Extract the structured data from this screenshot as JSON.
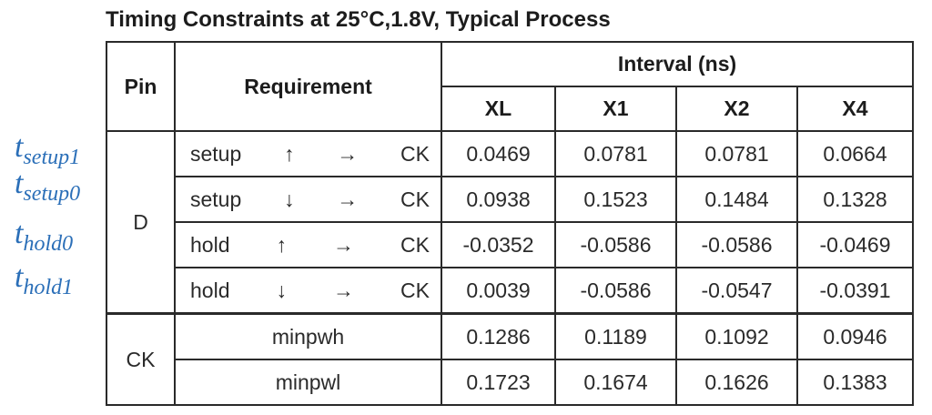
{
  "title": "Timing Constraints at 25°C,1.8V, Typical Process",
  "annotations": [
    {
      "base": "t",
      "sub": "setup1"
    },
    {
      "base": "t",
      "sub": "setup0"
    },
    {
      "base": "t",
      "sub": "hold0"
    },
    {
      "base": "t",
      "sub": "hold1"
    }
  ],
  "table": {
    "header": {
      "pin": "Pin",
      "requirement": "Requirement",
      "interval": "Interval (ns)",
      "columns": [
        "XL",
        "X1",
        "X2",
        "X4"
      ]
    },
    "groups": [
      {
        "pin": "D",
        "rows": [
          {
            "req": [
              "setup",
              "↑",
              "→",
              "CK"
            ],
            "values": [
              "0.0469",
              "0.0781",
              "0.0781",
              "0.0664"
            ]
          },
          {
            "req": [
              "setup",
              "↓",
              "→",
              "CK"
            ],
            "values": [
              "0.0938",
              "0.1523",
              "0.1484",
              "0.1328"
            ]
          },
          {
            "req": [
              "hold",
              "↑",
              "→",
              "CK"
            ],
            "values": [
              "-0.0352",
              "-0.0586",
              "-0.0586",
              "-0.0469"
            ]
          },
          {
            "req": [
              "hold",
              "↓",
              "→",
              "CK"
            ],
            "values": [
              "0.0039",
              "-0.0586",
              "-0.0547",
              "-0.0391"
            ]
          }
        ]
      },
      {
        "pin": "CK",
        "rows": [
          {
            "req": [
              "minpwh"
            ],
            "values": [
              "0.1286",
              "0.1189",
              "0.1092",
              "0.0946"
            ]
          },
          {
            "req": [
              "minpwl"
            ],
            "values": [
              "0.1723",
              "0.1674",
              "0.1626",
              "0.1383"
            ]
          }
        ]
      }
    ]
  }
}
